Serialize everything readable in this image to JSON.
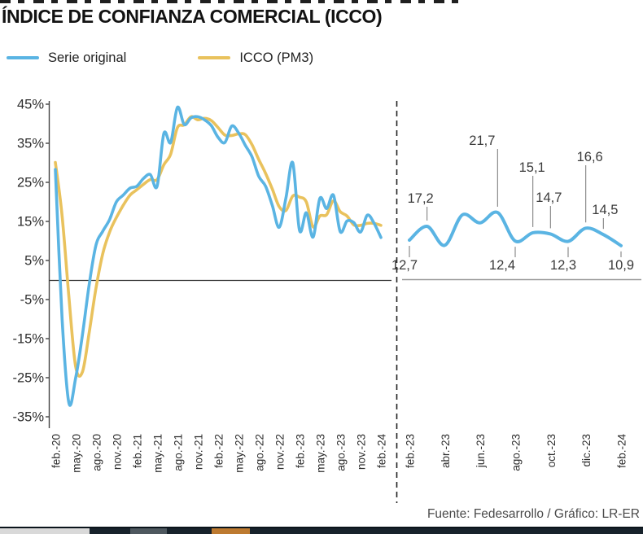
{
  "title": "ÍNDICE DE CONFIANZA COMERCIAL (ICCO)",
  "legend": [
    {
      "label": "Serie original",
      "color": "#5ab4e3"
    },
    {
      "label": "ICCO (PM3)",
      "color": "#e9c25d"
    }
  ],
  "footer": "Fuente: Fedesarrollo / Gráfico: LR-ER",
  "colors": {
    "serie_original": "#5ab4e3",
    "icco_pm3": "#e9c25d",
    "axis": "#444444",
    "annotation_text": "#3a3a3a"
  },
  "chart_data": [
    {
      "type": "line",
      "panel": "full-series",
      "x_unit": "month",
      "x": [
        "feb-20",
        "mar-20",
        "abr-20",
        "may-20",
        "jun-20",
        "jul-20",
        "ago-20",
        "sep-20",
        "oct-20",
        "nov-20",
        "dic-20",
        "ene-21",
        "feb-21",
        "mar-21",
        "abr-21",
        "may-21",
        "jun-21",
        "jul-21",
        "ago-21",
        "sep-21",
        "oct-21",
        "nov-21",
        "dic-21",
        "ene-22",
        "feb-22",
        "mar-22",
        "abr-22",
        "may-22",
        "jun-22",
        "jul-22",
        "ago-22",
        "sep-22",
        "oct-22",
        "nov-22",
        "dic-22",
        "ene-23",
        "feb-23",
        "mar-23",
        "abr-23",
        "may-23",
        "jun-23",
        "jul-23",
        "ago-23",
        "sep-23",
        "oct-23",
        "nov-23",
        "dic-23",
        "ene-24",
        "feb-24"
      ],
      "series": [
        {
          "name": "Serie original",
          "color": "#5ab4e3",
          "values": [
            28.3,
            -10,
            -31.5,
            -25,
            -14,
            -1,
            9,
            12.5,
            15.5,
            20,
            21.7,
            23.5,
            24,
            26,
            27,
            24,
            37.5,
            35.2,
            44.2,
            39.8,
            41.5,
            41.8,
            41,
            39.5,
            36.5,
            35.2,
            39.4,
            37.7,
            34.5,
            31.5,
            26.5,
            24,
            19,
            13.5,
            21,
            30,
            12.7,
            17.2,
            11,
            20.9,
            18.3,
            21.7,
            12.4,
            15.1,
            14.7,
            12.3,
            16.6,
            14.5,
            10.9
          ]
        },
        {
          "name": "ICCO (PM3)",
          "color": "#e9c25d",
          "values": [
            30.1,
            16.4,
            -4.4,
            -22.2,
            -23.5,
            -13.3,
            -2,
            6.8,
            12.3,
            16,
            19.1,
            21.7,
            23.1,
            24.5,
            25.7,
            25.7,
            29.5,
            32.2,
            39,
            39.7,
            41.8,
            41,
            41.4,
            40.8,
            39,
            37.1,
            37,
            37.4,
            37.2,
            34.6,
            30.8,
            27.3,
            23.2,
            18.8,
            17.8,
            21.5,
            21.2,
            20,
            13.6,
            16.4,
            16.7,
            20.3,
            17.5,
            16.4,
            14.1,
            14,
            14.5,
            14.5,
            14
          ]
        }
      ],
      "x_tick_labels": [
        "feb.-20",
        "may.-20",
        "ago.-20",
        "nov.-20",
        "feb.-21",
        "may.-21",
        "ago.-21",
        "nov.-21",
        "feb.-22",
        "may.-22",
        "ago.-22",
        "nov.-22",
        "feb.-23",
        "may.-23",
        "ago.-23",
        "nov.-23",
        "feb.-24"
      ],
      "x_tick_every_n_months": 3,
      "y_ticks": [
        45,
        35,
        25,
        15,
        5,
        -5,
        -15,
        -25,
        -35
      ],
      "y_tick_labels": [
        "45%",
        "35%",
        "25%",
        "15%",
        "5%",
        "-5%",
        "-15%",
        "-25%",
        "-35%"
      ],
      "ylim": [
        -35,
        45
      ],
      "grid": false,
      "zero_line": true,
      "legend_position": "top-left"
    },
    {
      "type": "line",
      "panel": "zoom-2023",
      "series_name": "Serie original",
      "color": "#5ab4e3",
      "x": [
        "feb-23",
        "mar-23",
        "abr-23",
        "may-23",
        "jun-23",
        "jul-23",
        "ago-23",
        "sep-23",
        "oct-23",
        "nov-23",
        "dic-23",
        "ene-24",
        "feb-24"
      ],
      "values": [
        12.7,
        17.2,
        11,
        20.9,
        18.3,
        21.7,
        12.4,
        15.1,
        14.7,
        12.3,
        16.6,
        14.5,
        10.9
      ],
      "point_labels": [
        "12,7",
        "17,2",
        null,
        null,
        null,
        "21,7",
        "12,4",
        "15,1",
        "14,7",
        "12,3",
        "16,6",
        "14,5",
        "10,9"
      ],
      "x_tick_labels": [
        "feb.-23",
        "abr.-23",
        "jun.-23",
        "ago.-23",
        "oct.-23",
        "dic.-23",
        "feb.-24"
      ],
      "x_tick_every_n_months": 2,
      "annotations": [
        {
          "i": 0,
          "text": "12,7",
          "side": "down",
          "tip": 316,
          "dx": -6
        },
        {
          "i": 1,
          "text": "17,2",
          "side": "up",
          "tip": 254,
          "dx": -8
        },
        {
          "i": 5,
          "text": "21,7",
          "side": "up",
          "tip": 183,
          "dx": -19
        },
        {
          "i": 6,
          "text": "12,4",
          "side": "down",
          "tip": 316,
          "dx": -16
        },
        {
          "i": 7,
          "text": "15,1",
          "side": "up",
          "tip": 216,
          "dx": -1
        },
        {
          "i": 8,
          "text": "14,7",
          "side": "up",
          "tip": 253,
          "dx": -2
        },
        {
          "i": 9,
          "text": "12,3",
          "side": "down",
          "tip": 316,
          "dx": -6
        },
        {
          "i": 10,
          "text": "16,6",
          "side": "up",
          "tip": 203,
          "dx": 5
        },
        {
          "i": 11,
          "text": "14,5",
          "side": "up",
          "tip": 268,
          "dx": 2
        },
        {
          "i": 12,
          "text": "10,9",
          "side": "down",
          "tip": 316,
          "dx": 0
        }
      ]
    }
  ]
}
